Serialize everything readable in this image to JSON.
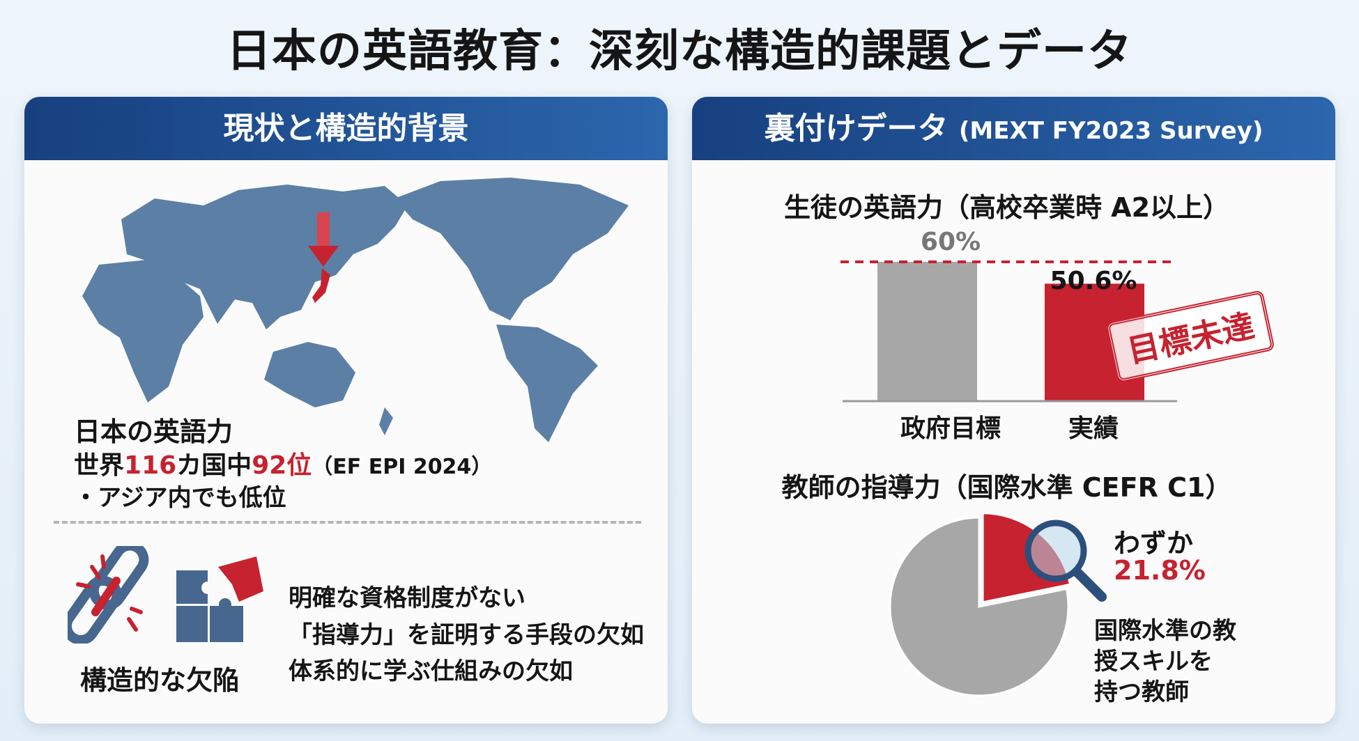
{
  "title": "日本の英語教育：深刻な構造的課題とデータ",
  "left_panel": {
    "header": "現状と構造的背景",
    "ranking": {
      "heading": "日本の英語力",
      "prefix": "世界",
      "total": "116",
      "middle": "カ国中",
      "rank": "92位",
      "source": "（EF EPI 2024）",
      "note": "・アジア内でも低位"
    },
    "structural": {
      "label": "構造的な欠陥",
      "icons": [
        "broken-chain-icon",
        "puzzle-missing-piece-icon"
      ],
      "points": [
        "明確な資格制度がない",
        "「指導力」を証明する手段の欠如",
        "体系的に学ぶ仕組みの欠如"
      ]
    }
  },
  "right_panel": {
    "header": "裏付けデータ",
    "header_source": "(MEXT FY2023 Survey)",
    "stamp": "目標未達",
    "pie_callout": {
      "label": "わずか",
      "value": "21.8%",
      "description": [
        "国際水準の教",
        "授スキルを",
        "持つ教師"
      ]
    }
  },
  "colors": {
    "accent_red": "#c62230",
    "header_blue": "#1f4f92",
    "bar_gray": "#a7a7a7",
    "map_blue": "#5c7fa6"
  },
  "chart_data": [
    {
      "type": "bar",
      "title": "生徒の英語力（高校卒業時 A2以上）",
      "categories": [
        "政府目標",
        "実績"
      ],
      "values": [
        60,
        50.6
      ],
      "value_labels": [
        "60%",
        "50.6%"
      ],
      "target_line": 60,
      "ylim": [
        0,
        60
      ],
      "colors": [
        "#a7a7a7",
        "#c62230"
      ]
    },
    {
      "type": "pie",
      "title": "教師の指導力（国際水準 CEFR C1）",
      "slices": [
        {
          "value": 21.8,
          "color": "#c62230"
        },
        {
          "value": 78.2,
          "color": "#a7a7a7"
        }
      ]
    }
  ]
}
